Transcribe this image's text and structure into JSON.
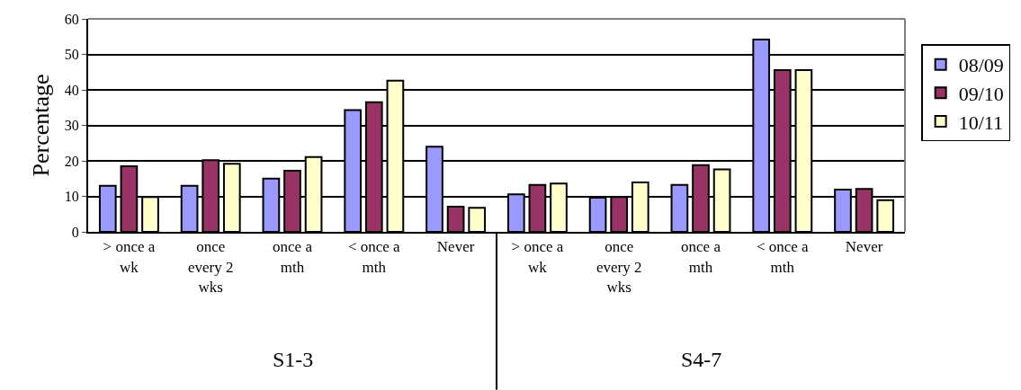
{
  "chart_data": {
    "type": "bar",
    "ylabel": "Percentage",
    "categories": [
      "> once a\nwk",
      "once\nevery 2\nwks",
      "once a\nmth",
      "< once a\nmth",
      "Never",
      "> once a\nwk",
      "once\nevery 2\nwks",
      "once a\nmth",
      "< once a\nmth",
      "Never"
    ],
    "series": [
      {
        "name": "08/09",
        "color": "#9999ff",
        "values": [
          13.0,
          13.0,
          15.0,
          34.3,
          24.0,
          10.6,
          9.6,
          13.2,
          54.2,
          11.9
        ]
      },
      {
        "name": "09/10",
        "color": "#993366",
        "values": [
          18.5,
          20.2,
          17.2,
          36.5,
          7.1,
          13.2,
          9.8,
          18.8,
          45.6,
          12.1
        ]
      },
      {
        "name": "10/11",
        "color": "#ffffcc",
        "values": [
          9.8,
          19.2,
          21.1,
          42.6,
          6.8,
          13.6,
          13.9,
          17.6,
          45.6,
          8.9
        ]
      }
    ],
    "ylim": [
      0,
      60
    ],
    "yticks": [
      0,
      10,
      20,
      30,
      40,
      50,
      60
    ],
    "grid": "y",
    "legend": "right",
    "annotations": [
      "S1-3",
      "S4-7"
    ]
  }
}
